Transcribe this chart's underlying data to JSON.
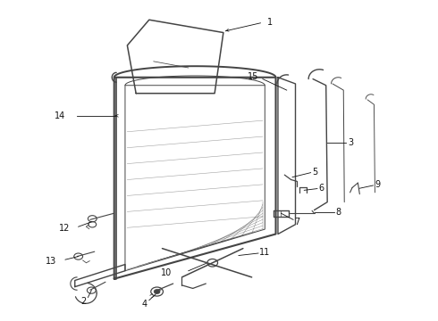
{
  "bg_color": "#ffffff",
  "line_color": "#444444",
  "label_color": "#111111",
  "figsize": [
    4.9,
    3.6
  ],
  "dpi": 100
}
